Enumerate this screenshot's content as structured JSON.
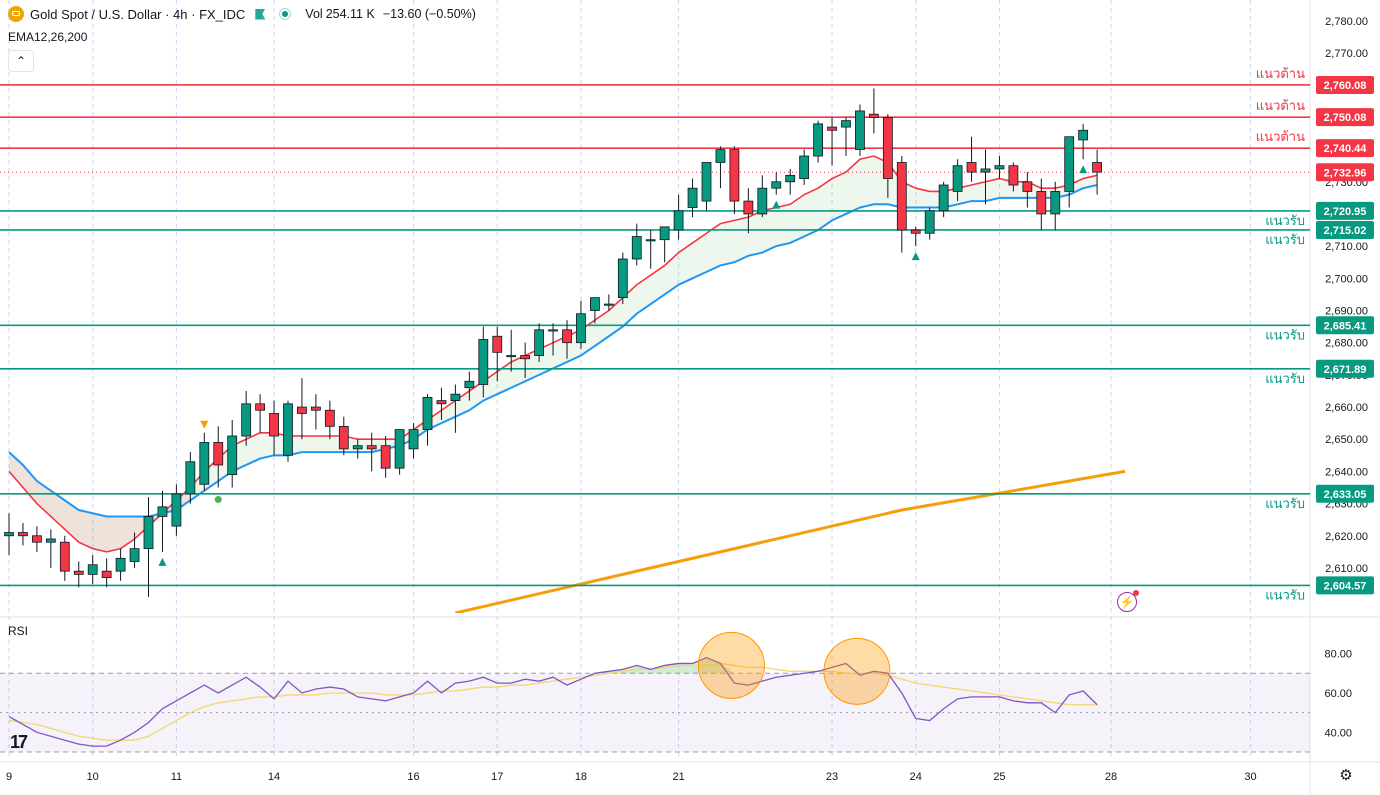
{
  "header": {
    "symbol_title": "Gold Spot / U.S. Dollar · 4h · FX_IDC",
    "vol_label": "Vol",
    "vol_value": "254.11 K",
    "change": "−13.60 (−0.50%)",
    "ema_legend": "EMA12,26,200",
    "collapse_icon": "chevron-up-icon"
  },
  "rsi_label": "RSI",
  "colors": {
    "up": "#089981",
    "down": "#f23645",
    "ema12": "#f23645",
    "ema26": "#2196f3",
    "ema200": "#f59e0b",
    "rsi": "#7e57c2",
    "rsi_ma": "#f5d76e",
    "support_line": "#089981",
    "resistance_line": "#f23645"
  },
  "chart_data": [
    {
      "type": "candlestick",
      "title": "Gold Spot / U.S. Dollar · 4h · FX_IDC",
      "ylim": [
        2596,
        2784
      ],
      "y_ticks": [
        2610,
        2620,
        2630,
        2640,
        2650,
        2660,
        2670,
        2680,
        2690,
        2700,
        2710,
        2720,
        2730,
        2740,
        2750,
        2760,
        2770,
        2780
      ],
      "y_tick_labels": [
        "2,610.00",
        "2,620.00",
        "2,630.00",
        "2,640.00",
        "2,650.00",
        "2,660.00",
        "2,670.00",
        "2,680.00",
        "2,690.00",
        "2,700.00",
        "2,710.00",
        "2,720.00",
        "2,730.00",
        "2,740.00",
        "2,750.00",
        "2,760.00",
        "2,770.00",
        "2,780.00"
      ],
      "x_day_labels": [
        "9",
        "10",
        "11",
        "14",
        "16",
        "17",
        "18",
        "21",
        "23",
        "24",
        "25",
        "28",
        "30"
      ],
      "x_day_bar_index": [
        0,
        6,
        12,
        19,
        29,
        35,
        41,
        48,
        59,
        65,
        71,
        79,
        89
      ],
      "current_price": 2732.96,
      "current_price_label": "2,732.96",
      "levels": [
        {
          "price": 2760.08,
          "label": "2,760.08",
          "kind": "resistance",
          "tag": "แนวต้าน"
        },
        {
          "price": 2750.08,
          "label": "2,750.08",
          "kind": "resistance",
          "tag": "แนวต้าน"
        },
        {
          "price": 2740.44,
          "label": "2,740.44",
          "kind": "resistance",
          "tag": "แนวต้าน"
        },
        {
          "price": 2720.95,
          "label": "2,720.95",
          "kind": "support",
          "tag": "แนวรับ"
        },
        {
          "price": 2715.02,
          "label": "2,715.02",
          "kind": "support",
          "tag": "แนวรับ"
        },
        {
          "price": 2685.41,
          "label": "2,685.41",
          "kind": "support",
          "tag": "แนวรับ"
        },
        {
          "price": 2671.89,
          "label": "2,671.89",
          "kind": "support",
          "tag": "แนวรับ"
        },
        {
          "price": 2633.05,
          "label": "2,633.05",
          "kind": "support",
          "tag": "แนวรับ"
        },
        {
          "price": 2604.57,
          "label": "2,604.57",
          "kind": "support",
          "tag": "แนวรับ"
        }
      ],
      "candles": [
        [
          2620,
          2627,
          2614,
          2621
        ],
        [
          2621,
          2624,
          2617,
          2620
        ],
        [
          2620,
          2623,
          2615,
          2618
        ],
        [
          2618,
          2622,
          2610,
          2619
        ],
        [
          2618,
          2620,
          2606,
          2609
        ],
        [
          2609,
          2612,
          2604,
          2608
        ],
        [
          2608,
          2614,
          2605,
          2611
        ],
        [
          2609,
          2613,
          2604,
          2607
        ],
        [
          2609,
          2616,
          2606,
          2613
        ],
        [
          2612,
          2621,
          2610,
          2616
        ],
        [
          2616,
          2632,
          2601,
          2626
        ],
        [
          2626,
          2634,
          2615,
          2629
        ],
        [
          2623,
          2636,
          2620,
          2633
        ],
        [
          2633,
          2646,
          2630,
          2643
        ],
        [
          2636,
          2652,
          2634,
          2649
        ],
        [
          2649,
          2654,
          2635,
          2642
        ],
        [
          2639,
          2656,
          2635,
          2651
        ],
        [
          2651,
          2665,
          2648,
          2661
        ],
        [
          2661,
          2664,
          2652,
          2659
        ],
        [
          2658,
          2662,
          2645,
          2651
        ],
        [
          2645,
          2662,
          2643,
          2661
        ],
        [
          2660,
          2669,
          2650,
          2658
        ],
        [
          2660,
          2664,
          2653,
          2659
        ],
        [
          2659,
          2662,
          2650,
          2654
        ],
        [
          2654,
          2657,
          2645,
          2647
        ],
        [
          2647,
          2650,
          2644,
          2648
        ],
        [
          2648,
          2652,
          2640,
          2647
        ],
        [
          2648,
          2651,
          2638,
          2641
        ],
        [
          2641,
          2653,
          2639,
          2653
        ],
        [
          2647,
          2655,
          2644,
          2653
        ],
        [
          2653,
          2664,
          2648,
          2663
        ],
        [
          2662,
          2666,
          2656,
          2661
        ],
        [
          2662,
          2667,
          2652,
          2664
        ],
        [
          2666,
          2671,
          2662,
          2668
        ],
        [
          2667,
          2685,
          2663,
          2681
        ],
        [
          2682,
          2685,
          2668,
          2677
        ],
        [
          2676,
          2684,
          2671,
          2676
        ],
        [
          2676,
          2680,
          2669,
          2675
        ],
        [
          2676,
          2686,
          2674,
          2684
        ],
        [
          2684,
          2686,
          2676,
          2684
        ],
        [
          2684,
          2687,
          2675,
          2680
        ],
        [
          2680,
          2693,
          2678,
          2689
        ],
        [
          2690,
          2694,
          2686,
          2694
        ],
        [
          2692,
          2695,
          2690,
          2692
        ],
        [
          2694,
          2708,
          2692,
          2706
        ],
        [
          2706,
          2717,
          2704,
          2713
        ],
        [
          2712,
          2715,
          2703,
          2712
        ],
        [
          2712,
          2716,
          2705,
          2716
        ],
        [
          2715,
          2726,
          2712,
          2721
        ],
        [
          2722,
          2731,
          2719,
          2728
        ],
        [
          2724,
          2736,
          2721,
          2736
        ],
        [
          2736,
          2741,
          2728,
          2740
        ],
        [
          2740,
          2741,
          2720,
          2724
        ],
        [
          2724,
          2728,
          2714,
          2720
        ],
        [
          2720,
          2732,
          2719,
          2728
        ],
        [
          2728,
          2733,
          2726,
          2730
        ],
        [
          2730,
          2734,
          2726,
          2732
        ],
        [
          2731,
          2740,
          2729,
          2738
        ],
        [
          2738,
          2749,
          2736,
          2748
        ],
        [
          2747,
          2750,
          2735,
          2746
        ],
        [
          2747,
          2750,
          2738,
          2749
        ],
        [
          2740,
          2754,
          2738,
          2752
        ],
        [
          2751,
          2759,
          2745,
          2750
        ],
        [
          2750,
          2751,
          2725,
          2731
        ],
        [
          2736,
          2738,
          2708,
          2715
        ],
        [
          2715,
          2716,
          2710,
          2714
        ],
        [
          2714,
          2722,
          2712,
          2721
        ],
        [
          2721,
          2730,
          2719,
          2729
        ],
        [
          2727,
          2737,
          2724,
          2735
        ],
        [
          2736,
          2744,
          2730,
          2733
        ],
        [
          2733,
          2740,
          2723,
          2734
        ],
        [
          2734,
          2738,
          2731,
          2735
        ],
        [
          2735,
          2736,
          2727,
          2729
        ],
        [
          2730,
          2733,
          2722,
          2727
        ],
        [
          2727,
          2731,
          2715,
          2720
        ],
        [
          2720,
          2730,
          2715,
          2727
        ],
        [
          2727,
          2744,
          2722,
          2744
        ],
        [
          2743,
          2748,
          2737,
          2746
        ],
        [
          2736,
          2740,
          2726,
          2733
        ]
      ],
      "ema12": [
        2640,
        2635,
        2630,
        2626,
        2622,
        2618,
        2616,
        2615,
        2616,
        2619,
        2623,
        2627,
        2631,
        2635,
        2640,
        2644,
        2648,
        2650,
        2652,
        2652,
        2651,
        2651,
        2651,
        2651,
        2651,
        2650,
        2650,
        2650,
        2650,
        2653,
        2656,
        2659,
        2662,
        2665,
        2668,
        2671,
        2674,
        2676,
        2678,
        2680,
        2682,
        2684,
        2687,
        2690,
        2694,
        2698,
        2701,
        2704,
        2708,
        2711,
        2714,
        2717,
        2718,
        2719,
        2721,
        2722,
        2723,
        2726,
        2728,
        2731,
        2733,
        2737,
        2738,
        2736,
        2730,
        2728,
        2727,
        2727,
        2728,
        2729,
        2730,
        2731,
        2730,
        2730,
        2728,
        2728,
        2729,
        2731,
        2732
      ],
      "ema26": [
        2646,
        2642,
        2637,
        2634,
        2631,
        2628,
        2627,
        2626,
        2626,
        2626,
        2626,
        2627,
        2628,
        2631,
        2634,
        2637,
        2640,
        2642,
        2644,
        2645,
        2645,
        2646,
        2646,
        2646,
        2646,
        2646,
        2646,
        2647,
        2648,
        2650,
        2653,
        2655,
        2657,
        2659,
        2662,
        2664,
        2666,
        2668,
        2670,
        2672,
        2674,
        2676,
        2679,
        2682,
        2685,
        2689,
        2692,
        2695,
        2698,
        2700,
        2702,
        2704,
        2705,
        2707,
        2708,
        2710,
        2711,
        2713,
        2715,
        2718,
        2720,
        2722,
        2723,
        2723,
        2722,
        2722,
        2722,
        2722,
        2723,
        2724,
        2724,
        2725,
        2725,
        2725,
        2725,
        2725,
        2726,
        2728,
        2729
      ],
      "ema200": {
        "bar_index": [
          32,
          48,
          64,
          80
        ],
        "values": [
          2596,
          2612,
          2628,
          2640
        ]
      },
      "buy_markers": [
        11,
        55,
        65,
        77
      ],
      "sell_markers": [
        14
      ],
      "dot_markers": [
        15
      ]
    },
    {
      "type": "line",
      "title": "RSI",
      "ylim": [
        30,
        92
      ],
      "y_ticks": [
        40,
        60,
        80
      ],
      "y_tick_labels": [
        "40.00",
        "60.00",
        "80.00"
      ],
      "bands": [
        30,
        50,
        70
      ],
      "rsi": [
        48,
        44,
        40,
        38,
        36,
        34,
        33,
        33,
        36,
        40,
        45,
        52,
        56,
        60,
        64,
        60,
        64,
        68,
        63,
        57,
        66,
        60,
        62,
        63,
        62,
        58,
        57,
        56,
        58,
        60,
        66,
        60,
        65,
        66,
        68,
        65,
        65,
        67,
        66,
        68,
        64,
        67,
        70,
        71,
        72,
        74,
        72,
        74,
        75,
        75,
        78,
        75,
        65,
        64,
        66,
        68,
        69,
        70,
        71,
        73,
        75,
        69,
        71,
        70,
        60,
        47,
        46,
        52,
        57,
        58,
        58,
        58,
        56,
        55,
        55,
        50,
        59,
        61,
        54
      ],
      "rsi_ma": [
        46,
        45,
        44,
        42,
        40,
        38,
        37,
        36,
        36,
        36,
        38,
        42,
        46,
        50,
        53,
        55,
        56,
        57,
        58,
        58,
        59,
        59,
        59,
        60,
        60,
        60,
        60,
        59,
        59,
        59,
        60,
        61,
        61,
        62,
        63,
        63,
        64,
        64,
        65,
        66,
        67,
        68,
        69,
        70,
        71,
        72,
        72,
        73,
        74,
        74,
        74,
        75,
        74,
        73,
        73,
        72,
        71,
        71,
        71,
        71,
        70,
        70,
        70,
        69,
        67,
        65,
        64,
        63,
        62,
        61,
        60,
        59,
        58,
        57,
        56,
        55,
        54,
        54,
        54
      ]
    }
  ]
}
